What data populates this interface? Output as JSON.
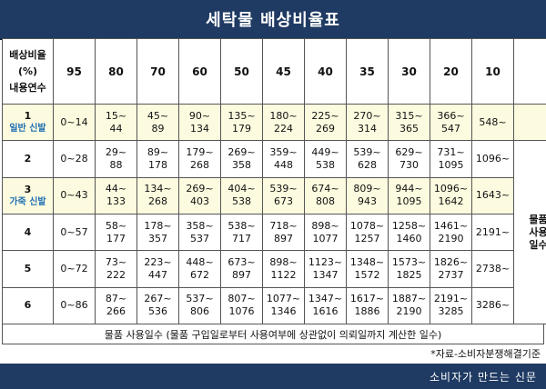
{
  "title": "세탁물 배상비율표",
  "header": {
    "corner_lines": [
      "배상비율",
      "(%)",
      "내용연수"
    ],
    "rates": [
      "95",
      "80",
      "70",
      "60",
      "50",
      "45",
      "40",
      "35",
      "30",
      "20",
      "10"
    ]
  },
  "rows": [
    {
      "num": "1",
      "sub": "일반 신발",
      "cells": [
        "0~14",
        "15~\n44",
        "45~\n89",
        "90~\n134",
        "135~\n179",
        "180~\n224",
        "225~\n269",
        "270~\n314",
        "315~\n365",
        "366~\n547",
        "548~"
      ]
    },
    {
      "num": "2",
      "sub": "",
      "cells": [
        "0~28",
        "29~\n88",
        "89~\n178",
        "179~\n268",
        "269~\n358",
        "359~\n448",
        "449~\n538",
        "539~\n628",
        "629~\n730",
        "731~\n1095",
        "1096~"
      ]
    },
    {
      "num": "3",
      "sub": "가죽 신발",
      "cells": [
        "0~43",
        "44~\n133",
        "134~\n268",
        "269~\n403",
        "404~\n538",
        "539~\n673",
        "674~\n808",
        "809~\n943",
        "944~\n1095",
        "1096~\n1642",
        "1643~"
      ]
    },
    {
      "num": "4",
      "sub": "",
      "cells": [
        "0~57",
        "58~\n177",
        "178~\n357",
        "358~\n537",
        "538~\n717",
        "718~\n897",
        "898~\n1077",
        "1078~\n1257",
        "1258~\n1460",
        "1461~\n2190",
        "2191~"
      ]
    },
    {
      "num": "5",
      "sub": "",
      "cells": [
        "0~72",
        "73~\n222",
        "223~\n447",
        "448~\n672",
        "673~\n897",
        "898~\n1122",
        "1123~\n1347",
        "1348~\n1572",
        "1573~\n1825",
        "1826~\n2737",
        "2738~"
      ]
    },
    {
      "num": "6",
      "sub": "",
      "cells": [
        "0~86",
        "87~\n266",
        "267~\n536",
        "537~\n806",
        "807~\n1076",
        "1077~\n1346",
        "1347~\n1616",
        "1617~\n1886",
        "1887~\n2190",
        "2191~\n3285",
        "3286~"
      ]
    }
  ],
  "side_label_lines": [
    "물품",
    "사용",
    "일수"
  ],
  "footnote": "물품 사용일수 (물품 구입일로부터 사용여부에 상관없이 의뢰일까지 계산한 일수)",
  "source": "*자료-소비자분쟁해결기준",
  "brand": "소비자가 만드는 신문"
}
